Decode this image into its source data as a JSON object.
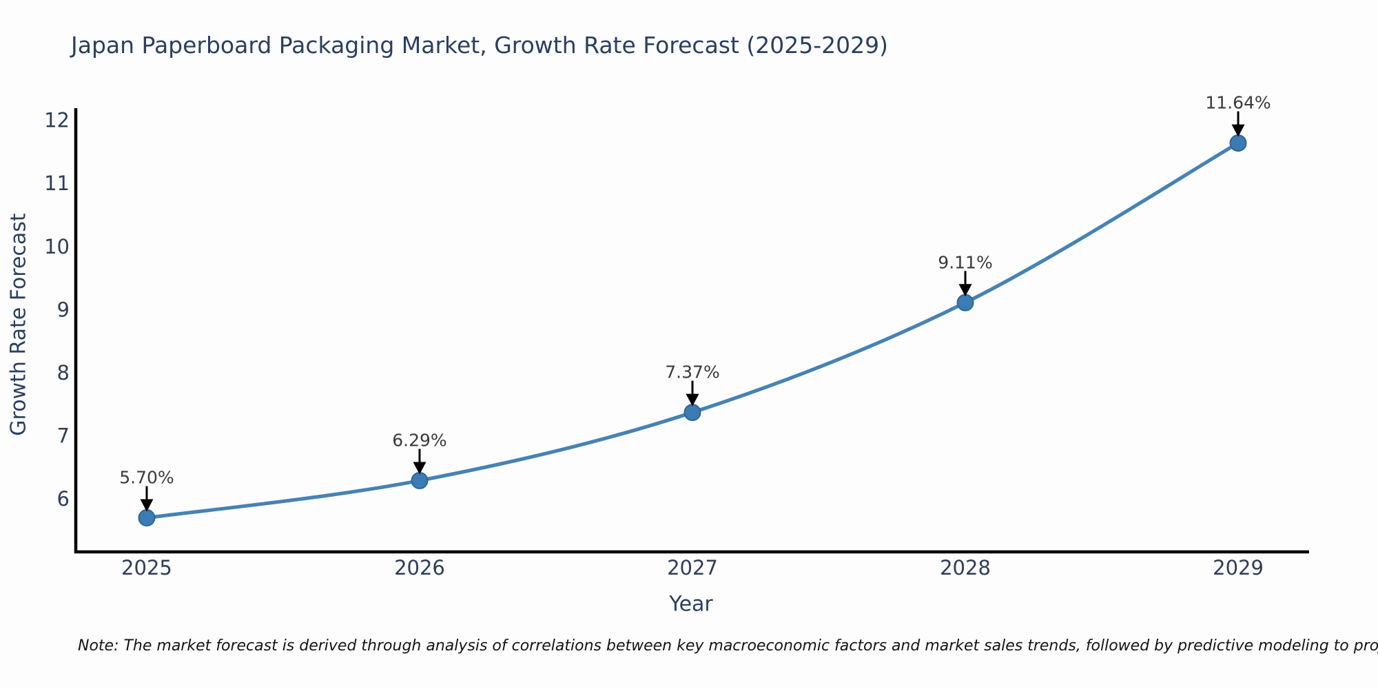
{
  "title": "Japan Paperboard Packaging Market, Growth Rate Forecast (2025-2029)",
  "note": "Note: The market forecast is derived through analysis of correlations between key macroeconomic factors and market sales trends, followed by predictive modeling to project future sales",
  "chart_data": {
    "type": "line",
    "x": [
      2025,
      2026,
      2027,
      2028,
      2029
    ],
    "values": [
      5.7,
      6.29,
      7.37,
      9.11,
      11.64
    ],
    "point_labels": [
      "5.70%",
      "6.29%",
      "7.37%",
      "9.11%",
      "11.64%"
    ],
    "title": "Japan Paperboard Packaging Market, Growth Rate Forecast (2025-2029)",
    "xlabel": "Year",
    "ylabel": "Growth Rate Forecast",
    "yticks": [
      6,
      7,
      8,
      9,
      10,
      11,
      12
    ],
    "xticks": [
      2025,
      2026,
      2027,
      2028,
      2029
    ],
    "ylim": [
      5.16,
      12.16
    ],
    "xlim": [
      2024.74,
      2029.26
    ],
    "grid": false,
    "legend": null,
    "smooth": true,
    "colors": {
      "line": "#4682b4",
      "marker_fill": "#3c7cb4",
      "marker_edge": "#2e6596",
      "annotation_text": "#3a3a3a",
      "arrow": "#000000",
      "axis_spine": "#000000",
      "title": "#2a3f5f",
      "tick_label": "#2f3d58"
    }
  }
}
